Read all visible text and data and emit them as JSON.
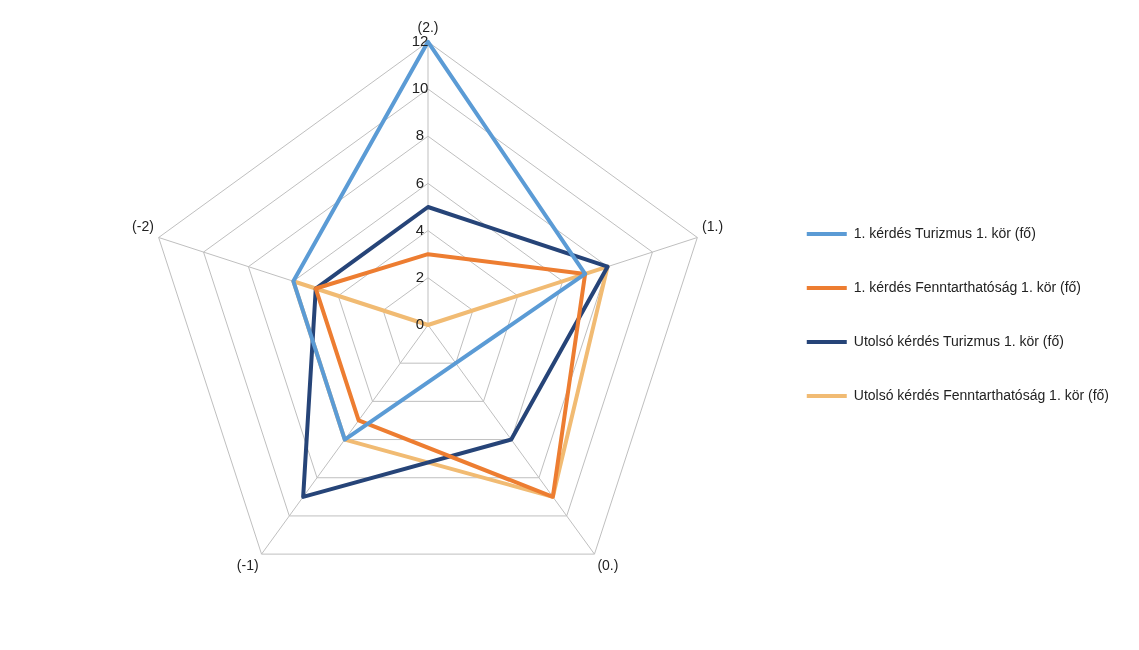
{
  "chart_data": {
    "type": "radar",
    "categories": [
      "(2.)",
      "(1.)",
      "(0.)",
      "(-1)",
      "(-2)"
    ],
    "series": [
      {
        "name": "1. kérdés Turizmus 1. kör (fő)",
        "color": "#5b9bd5",
        "values": [
          12,
          7,
          2,
          6,
          6
        ]
      },
      {
        "name": "1. kérdés Fenntarthatóság 1. kör (fő)",
        "color": "#ed7d31",
        "values": [
          3,
          7,
          9,
          5,
          5
        ]
      },
      {
        "name": "Utolsó kérdés Turizmus 1. kör (fő)",
        "color": "#264478",
        "values": [
          5,
          8,
          6,
          9,
          5
        ]
      },
      {
        "name": "Utolsó kérdés Fenntarthatóság 1. kör (fő)",
        "color": "#f1bb73",
        "values": [
          0,
          8,
          9,
          6,
          6
        ]
      }
    ],
    "ylim": [
      0,
      12
    ],
    "yticks": [
      0,
      2,
      4,
      6,
      8,
      10,
      12
    ],
    "grid": true,
    "legend": "right",
    "marker": "none",
    "line_style": "solid"
  }
}
